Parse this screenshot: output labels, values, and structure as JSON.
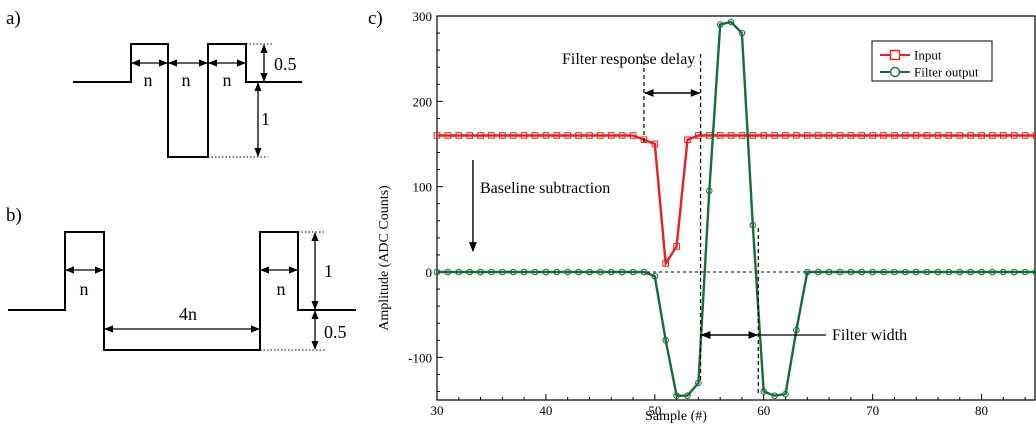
{
  "panel_a": {
    "label": "a)",
    "n_labels": [
      "n",
      "n",
      "n"
    ],
    "high_label": "0.5",
    "low_label": "1"
  },
  "panel_b": {
    "label": "b)",
    "n_left": "n",
    "wide_label": "4n",
    "n_right": "n",
    "high_label": "1",
    "low_label": "0.5"
  },
  "chart_data": {
    "type": "line",
    "panel_label": "c)",
    "xlabel": "Sample (#)",
    "ylabel": "Amplitude (ADC Counts)",
    "xlim": [
      30,
      85
    ],
    "ylim": [
      -150,
      300
    ],
    "xticks": [
      30,
      40,
      50,
      60,
      70,
      80
    ],
    "yticks": [
      -100,
      0,
      100,
      200,
      300
    ],
    "grid": false,
    "legend_position": "top-right",
    "series": [
      {
        "name": "Input",
        "color": "#e8201f",
        "marker": "square",
        "x": [
          30,
          31,
          32,
          33,
          34,
          35,
          36,
          37,
          38,
          39,
          40,
          41,
          42,
          43,
          44,
          45,
          46,
          47,
          48,
          49,
          50,
          51,
          52,
          53,
          54,
          55,
          56,
          57,
          58,
          59,
          60,
          61,
          62,
          63,
          64,
          65,
          66,
          67,
          68,
          69,
          70,
          71,
          72,
          73,
          74,
          75,
          76,
          77,
          78,
          79,
          80,
          81,
          82,
          83,
          84,
          85
        ],
        "values": [
          160,
          160,
          160,
          160,
          160,
          160,
          160,
          160,
          160,
          160,
          160,
          160,
          160,
          160,
          160,
          160,
          160,
          160,
          160,
          155,
          150,
          10,
          30,
          155,
          160,
          160,
          160,
          160,
          160,
          160,
          160,
          160,
          160,
          160,
          160,
          160,
          160,
          160,
          160,
          160,
          160,
          160,
          160,
          160,
          160,
          160,
          160,
          160,
          160,
          160,
          160,
          160,
          160,
          160,
          160,
          160
        ]
      },
      {
        "name": "Filter output",
        "color": "#1a6b3a",
        "marker": "circle",
        "x": [
          30,
          31,
          32,
          33,
          34,
          35,
          36,
          37,
          38,
          39,
          40,
          41,
          42,
          43,
          44,
          45,
          46,
          47,
          48,
          49,
          50,
          51,
          52,
          53,
          54,
          55,
          56,
          57,
          58,
          59,
          60,
          61,
          62,
          63,
          64,
          65,
          66,
          67,
          68,
          69,
          70,
          71,
          72,
          73,
          74,
          75,
          76,
          77,
          78,
          79,
          80,
          81,
          82,
          83,
          84,
          85
        ],
        "values": [
          0,
          0,
          0,
          0,
          0,
          0,
          0,
          0,
          0,
          0,
          0,
          0,
          0,
          0,
          0,
          0,
          0,
          0,
          0,
          0,
          -5,
          -80,
          -145,
          -145,
          -130,
          95,
          290,
          293,
          280,
          55,
          -140,
          -145,
          -143,
          -68,
          0,
          0,
          0,
          0,
          0,
          0,
          0,
          0,
          0,
          0,
          0,
          0,
          0,
          0,
          0,
          0,
          0,
          0,
          0,
          0,
          0,
          0
        ]
      }
    ],
    "annotations": {
      "delay": "Filter response delay",
      "baseline": "Baseline subtraction",
      "width": "Filter width"
    }
  }
}
